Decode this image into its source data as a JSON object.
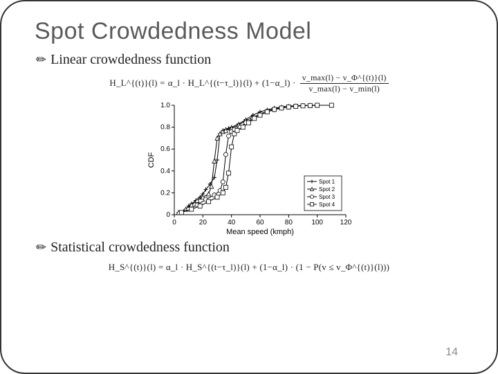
{
  "slide": {
    "title": "Spot Crowdedness Model",
    "page_number": "14"
  },
  "bullets": {
    "linear": {
      "icon": "✏",
      "text": "Linear crowdedness function"
    },
    "statistical": {
      "icon": "✏",
      "text": "Statistical crowdedness function"
    }
  },
  "formulas": {
    "linear": {
      "lhs": "H_L^{(t)}(l) =",
      "rhs_part1": "α_l · H_L^{(t−τ_l)}(l) + (1−α_l) ·",
      "frac_num": "v_max(l) − v_Φ^{(t)}(l)",
      "frac_den": "v_max(l) − v_min(l)"
    },
    "statistical": {
      "full": "H_S^{(t)}(l) = α_l · H_S^{(t−τ_l)}(l) + (1−α_l) · (1 − P(v ≤ v_Φ^{(t)}(l)))"
    }
  },
  "chart": {
    "type": "line",
    "title": "",
    "xlabel": "Mean speed (kmph)",
    "ylabel": "CDF",
    "xlim": [
      0,
      120
    ],
    "ylim": [
      0,
      1.0
    ],
    "xtick_step": 20,
    "ytick_step": 0.2,
    "background_color": "#ffffff",
    "grid_color": "#ffffff",
    "axis_color": "#000000",
    "label_fontsize": 11,
    "tick_fontsize": 10,
    "line_width": 1,
    "marker_size": 3,
    "legend": {
      "position": "lower-right-interior",
      "items": [
        "Spot 1",
        "Spot 2",
        "Spot 3",
        "Spot 4"
      ]
    },
    "series": [
      {
        "name": "Spot 1",
        "marker": "plus",
        "color": "#000000",
        "x": [
          3,
          8,
          10,
          12,
          15,
          18,
          20,
          22,
          25,
          28,
          30,
          32,
          34,
          36,
          38,
          40,
          45,
          50,
          55,
          60,
          65,
          70,
          75,
          80,
          85,
          90,
          95,
          100,
          110
        ],
        "y": [
          0.02,
          0.05,
          0.08,
          0.1,
          0.13,
          0.16,
          0.19,
          0.23,
          0.28,
          0.34,
          0.5,
          0.74,
          0.77,
          0.78,
          0.79,
          0.8,
          0.83,
          0.87,
          0.91,
          0.94,
          0.96,
          0.975,
          0.985,
          0.992,
          0.996,
          0.998,
          0.999,
          1.0,
          1.0
        ]
      },
      {
        "name": "Spot 2",
        "marker": "triangle",
        "color": "#000000",
        "x": [
          3,
          8,
          12,
          16,
          20,
          24,
          26,
          28,
          30,
          32,
          34,
          36,
          40,
          45,
          50,
          55,
          60,
          65,
          70,
          75,
          80,
          85,
          90,
          95,
          100,
          110
        ],
        "y": [
          0.02,
          0.05,
          0.09,
          0.13,
          0.16,
          0.19,
          0.26,
          0.49,
          0.7,
          0.74,
          0.76,
          0.77,
          0.79,
          0.82,
          0.86,
          0.89,
          0.92,
          0.95,
          0.968,
          0.978,
          0.986,
          0.992,
          0.996,
          0.998,
          1.0,
          1.0
        ]
      },
      {
        "name": "Spot 3",
        "marker": "circle",
        "color": "#000000",
        "x": [
          5,
          10,
          16,
          22,
          28,
          32,
          34,
          36,
          38,
          40,
          42,
          46,
          50,
          55,
          60,
          65,
          70,
          75,
          80,
          85,
          90,
          95,
          100,
          110
        ],
        "y": [
          0.02,
          0.05,
          0.09,
          0.14,
          0.18,
          0.22,
          0.3,
          0.55,
          0.72,
          0.76,
          0.78,
          0.8,
          0.84,
          0.88,
          0.91,
          0.94,
          0.96,
          0.975,
          0.985,
          0.992,
          0.996,
          0.998,
          1.0,
          1.0
        ]
      },
      {
        "name": "Spot 4",
        "marker": "square",
        "color": "#000000",
        "x": [
          5,
          12,
          18,
          24,
          30,
          34,
          36,
          38,
          40,
          42,
          44,
          48,
          52,
          56,
          60,
          65,
          70,
          75,
          80,
          85,
          90,
          95,
          100,
          110
        ],
        "y": [
          0.02,
          0.05,
          0.08,
          0.12,
          0.16,
          0.2,
          0.25,
          0.38,
          0.62,
          0.74,
          0.77,
          0.8,
          0.84,
          0.88,
          0.91,
          0.94,
          0.962,
          0.975,
          0.985,
          0.991,
          0.995,
          0.998,
          1.0,
          1.0
        ]
      }
    ]
  }
}
